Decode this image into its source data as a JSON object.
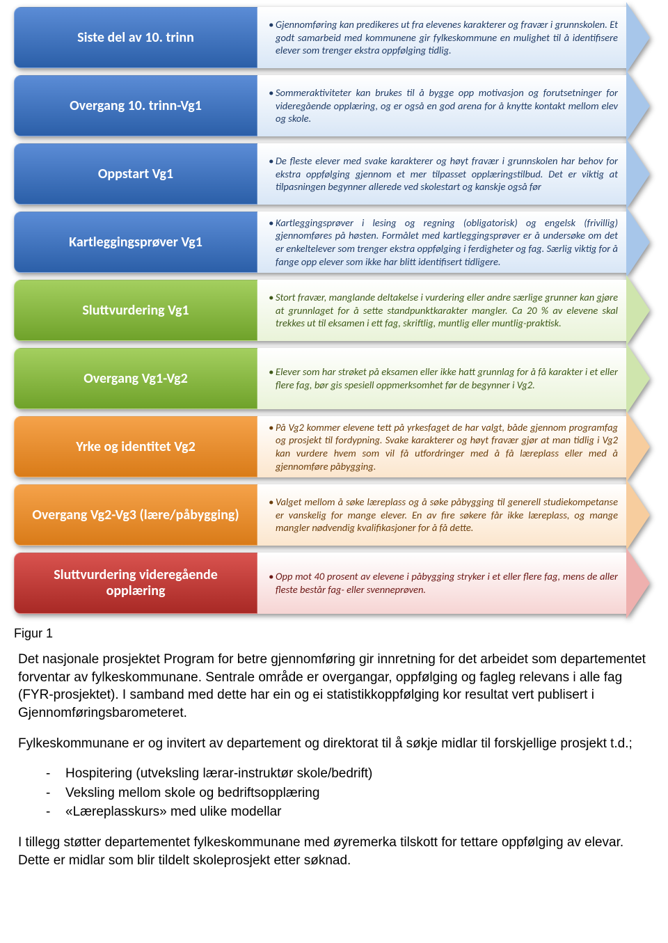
{
  "diagram": {
    "rows": [
      {
        "label": "Siste del av 10. trinn",
        "desc": "Gjennomføring kan predikeres ut fra elevenes karakterer og fravær i grunnskolen. Et godt samarbeid med kommunene gir fylkeskommune en mulighet til å identifisere elever som trenger ekstra oppfølging tidlig.",
        "color_group": "blue"
      },
      {
        "label": "Overgang 10. trinn-Vg1",
        "desc": "Sommeraktiviteter kan brukes til å bygge opp motivasjon og forutsetninger for videregående opplæring, og er også en god arena for å knytte kontakt mellom elev og skole.",
        "color_group": "blue"
      },
      {
        "label": "Oppstart Vg1",
        "desc": "De fleste elever med svake karakterer og høyt fravær i grunnskolen har behov for ekstra oppfølging gjennom et mer tilpasset opplæringstilbud. Det er viktig at tilpasningen begynner allerede ved skolestart og kanskje også før",
        "color_group": "blue"
      },
      {
        "label": "Kartleggingsprøver Vg1",
        "desc": "Kartleggingsprøver i lesing og regning (obligatorisk) og engelsk (frivillig) gjennomføres på høsten. Formålet med kartleggingsprøver er å undersøke om det er enkeltelever som trenger ekstra oppfølging i ferdigheter og fag. Særlig viktig for å fange opp elever som ikke har blitt identifisert tidligere.",
        "color_group": "blue"
      },
      {
        "label": "Sluttvurdering Vg1",
        "desc": "Stort fravær, manglande deltakelse i vurdering eller andre særlige grunner kan gjøre at grunnlaget for å sette standpunktkarakter mangler. Ca 20 % av elevene skal trekkes ut til eksamen i ett fag, skriftlig, muntlig eller muntlig-praktisk.",
        "color_group": "green"
      },
      {
        "label": "Overgang Vg1-Vg2",
        "desc": "Elever som har strøket på eksamen eller ikke hatt grunnlag for å få karakter i et eller flere fag, bør gis spesiell oppmerksomhet før de begynner i Vg2.",
        "color_group": "green"
      },
      {
        "label": "Yrke og identitet Vg2",
        "desc": "På Vg2 kommer elevene tett på yrkesfaget de har valgt, både gjennom programfag og prosjekt til fordypning. Svake karakterer og høyt fravær gjør at man tidlig i Vg2 kan vurdere hvem som vil få utfordringer med å få læreplass eller med å gjennomføre påbygging.",
        "color_group": "orange"
      },
      {
        "label": "Overgang Vg2-Vg3 (lære/påbygging)",
        "desc": "Valget mellom å søke læreplass og å søke påbygging til generell studiekompetanse er vanskelig for mange elever. En av fire søkere får ikke læreplass, og mange mangler nødvendig kvalifikasjoner for å få dette.",
        "color_group": "orange"
      },
      {
        "label": "Sluttvurdering videregående opplæring",
        "desc": "Opp mot 40 prosent av elevene i påbygging stryker i et eller flere fag, mens de aller fleste består fag- eller svenneprøven.",
        "color_group": "red"
      }
    ],
    "colors": {
      "blue": {
        "label_top": "#5b8cd6",
        "label_bot": "#2b5fa8",
        "desc_bg": "#d8e6f6",
        "desc_text": "#1f3b66",
        "head": "#a7c6ea"
      },
      "green": {
        "label_top": "#a4cf5f",
        "label_bot": "#6fa22a",
        "desc_bg": "#e9f3d8",
        "desc_text": "#3f5a19",
        "head": "#cfe5ad"
      },
      "orange": {
        "label_top": "#f5a24a",
        "label_bot": "#d97b18",
        "desc_bg": "#fce6cd",
        "desc_text": "#6b3e0c",
        "head": "#f7cd9e"
      },
      "red": {
        "label_top": "#d9534f",
        "label_bot": "#a82925",
        "desc_bg": "#f6d4d3",
        "desc_text": "#6b1714",
        "head": "#eeb0ae"
      }
    }
  },
  "caption": "Figur 1",
  "paragraphs": [
    "Det nasjonale prosjektet Program for betre gjennomføring gir innretning for det arbeidet som departementet forventar av fylkeskommunane. Sentrale område er overgangar, oppfølging og fagleg relevans i alle fag (FYR-prosjektet). I samband med dette har ein og ei statistikkoppfølging kor resultat vert publisert i Gjennomføringsbarometeret.",
    "Fylkeskommunane er og invitert av departement og direktorat til å søkje midlar til forskjellige prosjekt t.d.;"
  ],
  "list_items": [
    "Hospitering (utveksling lærar-instruktør skole/bedrift)",
    "Veksling mellom skole og bedriftsopplæring",
    "«Læreplasskurs» med ulike modellar"
  ],
  "paragraph_after": "I tillegg støtter departementet fylkeskommunane med øyremerka tilskott for tettare oppfølging av elevar. Dette er midlar som blir tildelt skoleprosjekt etter søknad."
}
